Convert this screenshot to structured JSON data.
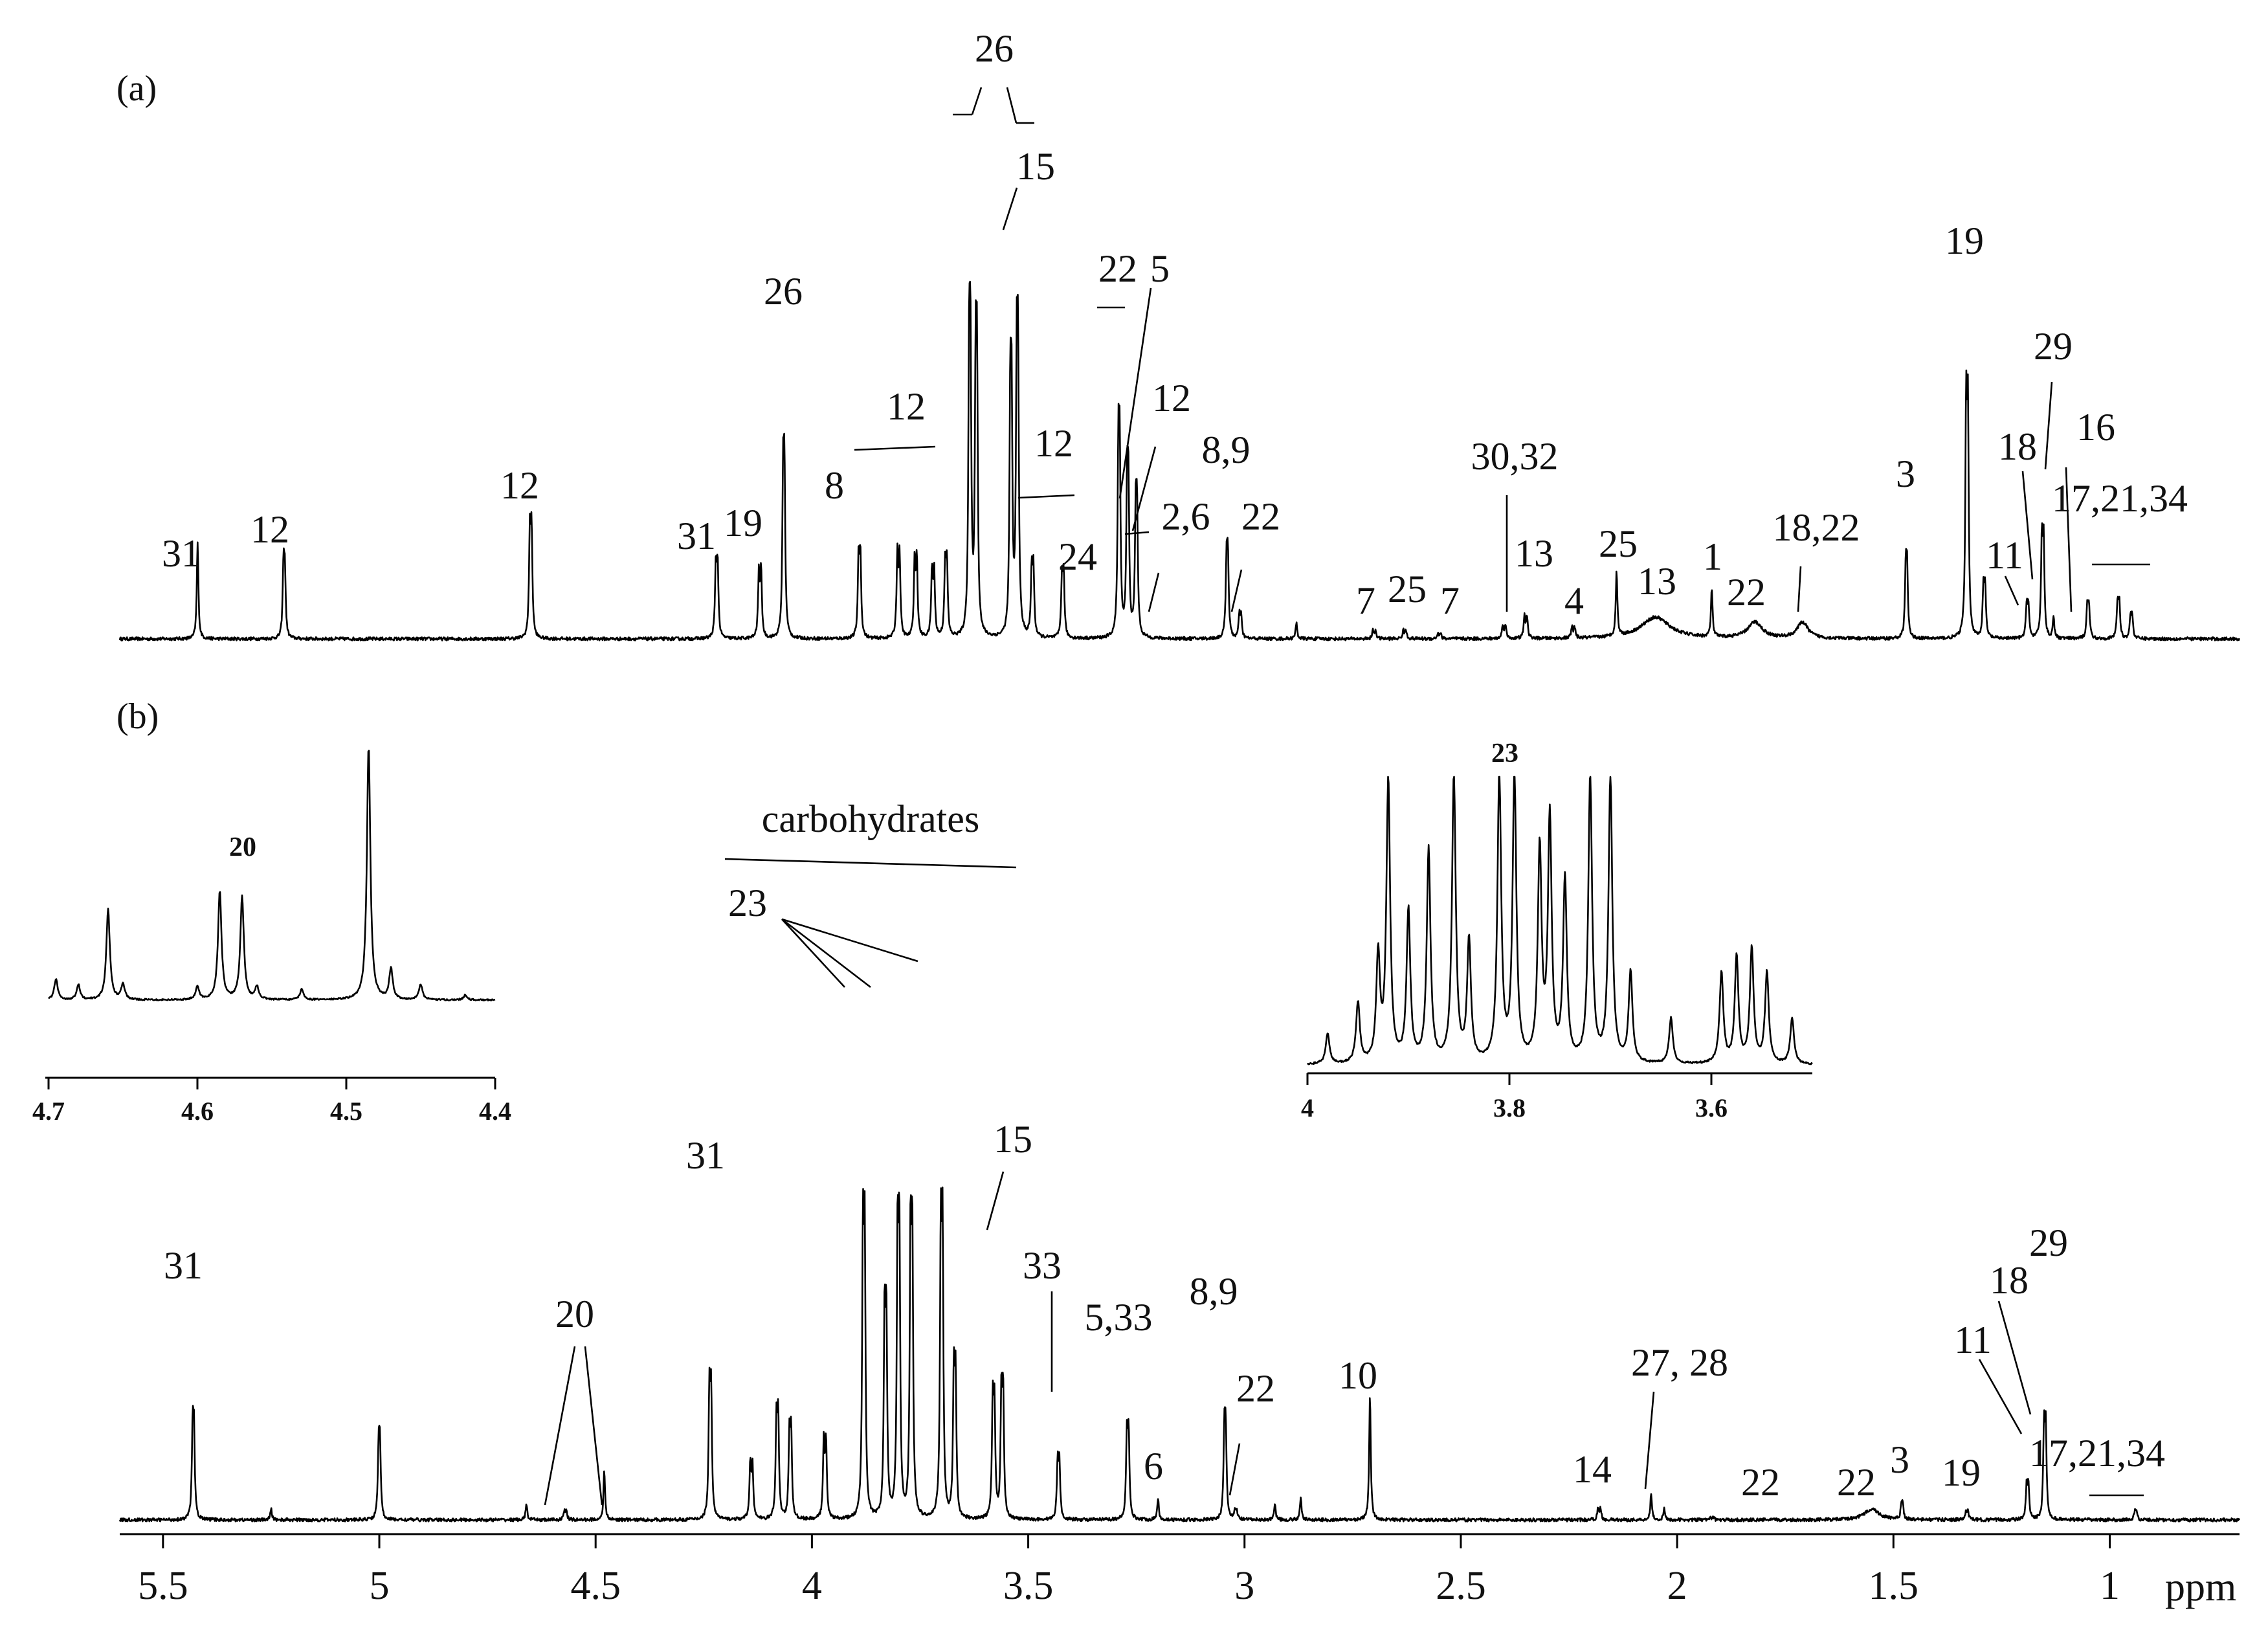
{
  "chart_data": {
    "type": "line",
    "x_unit": "ppm",
    "x_range": [
      5.6,
      0.7
    ],
    "x_reversed": true,
    "x_ticks": [
      "5.5",
      "5",
      "4.5",
      "4",
      "3.5",
      "3",
      "2.5",
      "2",
      "1.5",
      "1"
    ],
    "panels": [
      {
        "label": "(a)",
        "peaks": [
          {
            "ppm": 5.42,
            "h": 0.18,
            "lab": "31"
          },
          {
            "ppm": 5.22,
            "h": 0.24,
            "d": 0.003,
            "lab": "12"
          },
          {
            "ppm": 4.65,
            "h": 0.38,
            "d": 0.004,
            "lab": "12"
          },
          {
            "ppm": 4.22,
            "h": 0.26,
            "d": 0.004,
            "lab": "31"
          },
          {
            "ppm": 4.12,
            "h": 0.24,
            "d": 0.005,
            "lab": "19"
          },
          {
            "ppm": 4.065,
            "h": 0.55,
            "d": 0.003,
            "lab": "26"
          },
          {
            "ppm": 3.89,
            "h": 0.29,
            "d": 0.004,
            "lab": "8"
          },
          {
            "ppm": 3.8,
            "h": 0.3,
            "d": 0.005
          },
          {
            "ppm": 3.76,
            "h": 0.28,
            "d": 0.005
          },
          {
            "ppm": 3.72,
            "h": 0.24,
            "d": 0.005
          },
          {
            "ppm": 3.69,
            "h": 0.26,
            "d": 0.004
          },
          {
            "ppm": 3.635,
            "h": 0.93,
            "d": 0.003
          },
          {
            "ppm": 3.62,
            "h": 0.88,
            "d": 0.003
          },
          {
            "ppm": 3.54,
            "h": 0.78,
            "d": 0.003,
            "lab": "15"
          },
          {
            "ppm": 3.525,
            "h": 0.9,
            "d": 0.003
          },
          {
            "ppm": 3.49,
            "h": 0.24,
            "d": 0.004
          },
          {
            "ppm": 3.42,
            "h": 0.22,
            "d": 0.004,
            "lab": "24"
          },
          {
            "ppm": 3.29,
            "h": 0.62,
            "d": 0.003
          },
          {
            "ppm": 3.27,
            "h": 0.5,
            "d": 0.003
          },
          {
            "ppm": 3.25,
            "h": 0.42,
            "d": 0.003
          },
          {
            "ppm": 3.04,
            "h": 0.27,
            "d": 0.003,
            "lab": "8,9"
          },
          {
            "ppm": 3.01,
            "h": 0.08,
            "d": 0.004
          },
          {
            "ppm": 2.88,
            "h": 0.03
          },
          {
            "ppm": 2.7,
            "h": 0.03,
            "d": 0.006
          },
          {
            "ppm": 2.63,
            "h": 0.03,
            "d": 0.006
          },
          {
            "ppm": 2.55,
            "h": 0.02,
            "d": 0.006
          },
          {
            "ppm": 2.4,
            "h": 0.05,
            "d": 0.006
          },
          {
            "ppm": 2.35,
            "h": 0.08,
            "d": 0.006
          },
          {
            "ppm": 2.24,
            "h": 0.04,
            "d": 0.006
          },
          {
            "ppm": 2.14,
            "h": 0.12
          },
          {
            "ppm": 2.05,
            "h": 0.04,
            "w": 0.04
          },
          {
            "ppm": 1.92,
            "h": 0.09
          },
          {
            "ppm": 1.82,
            "h": 0.03,
            "w": 0.02
          },
          {
            "ppm": 1.71,
            "h": 0.03,
            "w": 0.015
          },
          {
            "ppm": 1.47,
            "h": 0.24,
            "d": 0.003
          },
          {
            "ppm": 1.33,
            "h": 0.8,
            "d": 0.004
          },
          {
            "ppm": 1.29,
            "h": 0.18,
            "d": 0.004
          },
          {
            "ppm": 1.19,
            "h": 0.12,
            "d": 0.004
          },
          {
            "ppm": 1.155,
            "h": 0.35,
            "d": 0.004
          },
          {
            "ppm": 1.13,
            "h": 0.04
          },
          {
            "ppm": 1.05,
            "h": 0.12,
            "d": 0.004
          },
          {
            "ppm": 0.98,
            "h": 0.13,
            "d": 0.004
          },
          {
            "ppm": 0.95,
            "h": 0.08,
            "d": 0.004
          }
        ],
        "labels": [
          "31",
          "12",
          "12",
          "31",
          "19",
          "26",
          "8",
          "12",
          "26",
          "15",
          "12",
          "22",
          "5",
          "12",
          "2,6",
          "24",
          "8,9",
          "22",
          "7",
          "25",
          "7",
          "30,32",
          "13",
          "4",
          "25",
          "13",
          "1",
          "22",
          "18,22",
          "3",
          "19",
          "11",
          "18",
          "29",
          "16",
          "17,21,34"
        ]
      },
      {
        "label": "(b)",
        "peaks": [
          {
            "ppm": 5.43,
            "h": 0.3,
            "d": 0.003,
            "lab": "31"
          },
          {
            "ppm": 5.25,
            "h": 0.02
          },
          {
            "ppm": 5.0,
            "h": 0.25,
            "d": 0.003
          },
          {
            "ppm": 4.66,
            "h": 0.03
          },
          {
            "ppm": 4.57,
            "h": 0.03,
            "d": 0.004,
            "lab": "20"
          },
          {
            "ppm": 4.48,
            "h": 0.09
          },
          {
            "ppm": 4.235,
            "h": 0.45,
            "d": 0.004,
            "lab": "31"
          },
          {
            "ppm": 4.14,
            "h": 0.2,
            "d": 0.005
          },
          {
            "ppm": 4.08,
            "h": 0.35,
            "d": 0.004
          },
          {
            "ppm": 4.05,
            "h": 0.3,
            "d": 0.004
          },
          {
            "ppm": 3.97,
            "h": 0.28,
            "d": 0.005
          },
          {
            "ppm": 3.88,
            "h": 0.98,
            "d": 0.004,
            "lab": "23"
          },
          {
            "ppm": 3.83,
            "h": 0.7,
            "d": 0.004
          },
          {
            "ppm": 3.8,
            "h": 0.98,
            "d": 0.004
          },
          {
            "ppm": 3.77,
            "h": 0.98,
            "d": 0.004
          },
          {
            "ppm": 3.7,
            "h": 0.98,
            "d": 0.004
          },
          {
            "ppm": 3.67,
            "h": 0.5,
            "d": 0.004
          },
          {
            "ppm": 3.58,
            "h": 0.4,
            "d": 0.004
          },
          {
            "ppm": 3.56,
            "h": 0.44,
            "d": 0.004,
            "lab": "15"
          },
          {
            "ppm": 3.43,
            "h": 0.2,
            "d": 0.004,
            "lab": "33"
          },
          {
            "ppm": 3.27,
            "h": 0.3,
            "d": 0.004,
            "lab": "5,33"
          },
          {
            "ppm": 3.2,
            "h": 0.04
          },
          {
            "ppm": 3.045,
            "h": 0.3,
            "d": 0.003,
            "lab": "8,9"
          },
          {
            "ppm": 3.02,
            "h": 0.03,
            "d": 0.004
          },
          {
            "ppm": 2.93,
            "h": 0.03
          },
          {
            "ppm": 2.87,
            "h": 0.04
          },
          {
            "ppm": 2.71,
            "h": 0.23,
            "lab": "10"
          },
          {
            "ppm": 2.18,
            "h": 0.04,
            "d": 0.006,
            "lab": "14"
          },
          {
            "ppm": 2.06,
            "h": 0.05,
            "lab": "27, 28"
          },
          {
            "ppm": 2.03,
            "h": 0.02
          },
          {
            "ppm": 1.92,
            "h": 0.01,
            "d": 0.006
          },
          {
            "ppm": 1.55,
            "h": 0.02,
            "w": 0.02
          },
          {
            "ppm": 1.48,
            "h": 0.05,
            "d": 0.003
          },
          {
            "ppm": 1.33,
            "h": 0.03,
            "d": 0.004
          },
          {
            "ppm": 1.19,
            "h": 0.12,
            "d": 0.004
          },
          {
            "ppm": 1.15,
            "h": 0.32,
            "d": 0.004
          },
          {
            "ppm": 0.94,
            "h": 0.03,
            "d": 0.004
          }
        ],
        "labels": [
          "31",
          "20",
          "31",
          "carbohydrates",
          "23",
          "15",
          "33",
          "5,33",
          "6",
          "8,9",
          "22",
          "10",
          "14",
          "27, 28",
          "22",
          "22",
          "3",
          "19",
          "11",
          "18",
          "29",
          "17,21,34"
        ],
        "insets": [
          {
            "x_range": [
              4.7,
              4.4
            ],
            "x_ticks": [
              "4.7",
              "4.6",
              "4.5",
              "4.4"
            ],
            "label": "20",
            "peaks": [
              {
                "ppm": 4.695,
                "h": 0.08
              },
              {
                "ppm": 4.68,
                "h": 0.06
              },
              {
                "ppm": 4.66,
                "h": 0.35
              },
              {
                "ppm": 4.65,
                "h": 0.06
              },
              {
                "ppm": 4.6,
                "h": 0.05
              },
              {
                "ppm": 4.585,
                "h": 0.42
              },
              {
                "ppm": 4.57,
                "h": 0.4
              },
              {
                "ppm": 4.56,
                "h": 0.05
              },
              {
                "ppm": 4.53,
                "h": 0.04
              },
              {
                "ppm": 4.485,
                "h": 0.98
              },
              {
                "ppm": 4.47,
                "h": 0.12
              },
              {
                "ppm": 4.45,
                "h": 0.06
              },
              {
                "ppm": 4.42,
                "h": 0.02
              }
            ]
          },
          {
            "x_range": [
              4.0,
              3.5
            ],
            "x_ticks": [
              "4",
              "3.8",
              "3.6"
            ],
            "label": "23",
            "peaks": [
              {
                "ppm": 3.98,
                "h": 0.1
              },
              {
                "ppm": 3.95,
                "h": 0.2
              },
              {
                "ppm": 3.93,
                "h": 0.35
              },
              {
                "ppm": 3.92,
                "h": 0.93
              },
              {
                "ppm": 3.9,
                "h": 0.5
              },
              {
                "ppm": 3.88,
                "h": 0.7
              },
              {
                "ppm": 3.855,
                "h": 0.95
              },
              {
                "ppm": 3.84,
                "h": 0.4
              },
              {
                "ppm": 3.81,
                "h": 0.95
              },
              {
                "ppm": 3.795,
                "h": 0.95
              },
              {
                "ppm": 3.77,
                "h": 0.7
              },
              {
                "ppm": 3.76,
                "h": 0.8
              },
              {
                "ppm": 3.745,
                "h": 0.6
              },
              {
                "ppm": 3.72,
                "h": 0.95
              },
              {
                "ppm": 3.7,
                "h": 0.95
              },
              {
                "ppm": 3.68,
                "h": 0.3
              },
              {
                "ppm": 3.64,
                "h": 0.15
              },
              {
                "ppm": 3.59,
                "h": 0.3
              },
              {
                "ppm": 3.575,
                "h": 0.35
              },
              {
                "ppm": 3.56,
                "h": 0.38
              },
              {
                "ppm": 3.545,
                "h": 0.3
              },
              {
                "ppm": 3.52,
                "h": 0.15
              }
            ]
          }
        ]
      }
    ]
  }
}
